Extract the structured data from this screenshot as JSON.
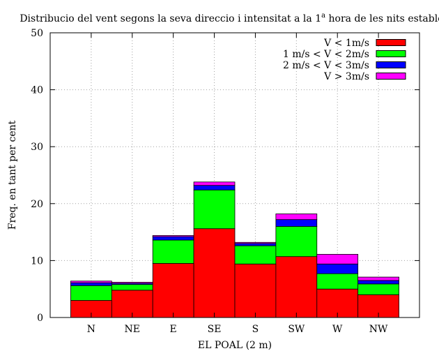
{
  "chart_data": {
    "type": "bar",
    "stacked": true,
    "title": {
      "text_before": "Distribucio del vent segons la seva direccio i intensitat a la 1",
      "superscript": "a",
      "text_after": " hora de les nits estables"
    },
    "xlabel": "EL POAL (2 m)",
    "ylabel": "Freq. en tant per cent",
    "ylim": [
      0,
      50
    ],
    "yticks": [
      0,
      10,
      20,
      30,
      40,
      50
    ],
    "grid": true,
    "legend_position": "top-right",
    "categories": [
      "N",
      "NE",
      "E",
      "SE",
      "S",
      "SW",
      "W",
      "NW"
    ],
    "series": [
      {
        "name": "V < 1m/s",
        "color": "#ff0000",
        "values": [
          3.0,
          4.8,
          9.5,
          15.6,
          9.4,
          10.7,
          5.0,
          4.0
        ]
      },
      {
        "name": "1 m/s < V < 2m/s",
        "color": "#00ff00",
        "values": [
          2.6,
          1.0,
          4.1,
          6.8,
          3.2,
          5.3,
          2.7,
          1.9
        ]
      },
      {
        "name": "2 m/s < V < 3m/s",
        "color": "#0000ff",
        "values": [
          0.5,
          0.2,
          0.6,
          0.8,
          0.4,
          1.2,
          1.7,
          0.6
        ]
      },
      {
        "name": "V > 3m/s",
        "color": "#ff00ff",
        "values": [
          0.3,
          0.2,
          0.2,
          0.6,
          0.2,
          1.0,
          1.7,
          0.6
        ]
      }
    ]
  }
}
